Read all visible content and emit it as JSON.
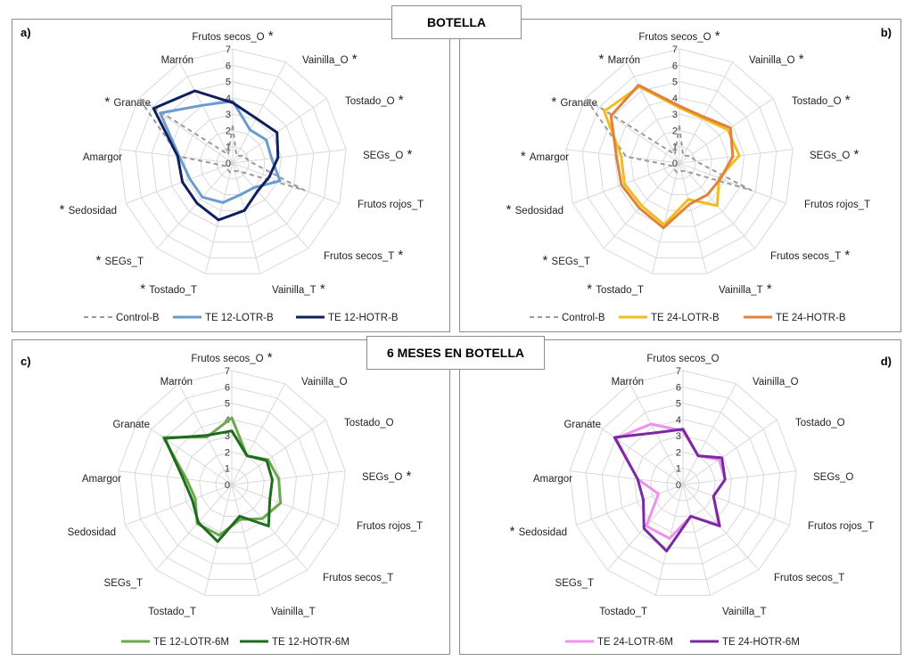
{
  "banners": {
    "top": "BOTELLA",
    "bottom": "6 MESES EN BOTELLA"
  },
  "colors": {
    "Control-B": "#9a9a9a",
    "TE 12-LOTR-B": "#6a9bd1",
    "TE 12-HOTR-B": "#0f1f5c",
    "TE 24-LOTR-B": "#f2bc1f",
    "TE 24-HOTR-B": "#e0823a",
    "TE 12-LOTR-6M": "#6aaa4d",
    "TE 12-HOTR-6M": "#1e6b1e",
    "TE 24-LOTR-6M": "#ee90ee",
    "TE 24-HOTR-6M": "#7a2aa0"
  },
  "chart_data": [
    {
      "type": "radar",
      "panel_label": "a)",
      "categories": [
        "Frutos secos_O",
        "Vainilla_O",
        "Tostado_O",
        "SEGs_O",
        "Frutos rojos_T",
        "Frutos secos_T",
        "Vainilla_T",
        "Tostado_T",
        "SEGs_T",
        "Sedosidad",
        "Amargor",
        "Granate",
        "Marrón"
      ],
      "significant": [
        true,
        true,
        true,
        true,
        false,
        true,
        true,
        true,
        true,
        true,
        false,
        true,
        false
      ],
      "ticks": [
        "0",
        "1",
        "2",
        "3",
        "4",
        "5",
        "6",
        "7"
      ],
      "rmax": 7,
      "series": [
        {
          "name": "Control-B",
          "dashed": true,
          "values": [
            2.3,
            0.5,
            0.8,
            1,
            4.7,
            0.7,
            0.5,
            0.6,
            0.5,
            0.5,
            3.3,
            7,
            0.6
          ]
        },
        {
          "name": "TE 12-LOTR-B",
          "values": [
            3.8,
            2.3,
            2.5,
            2.4,
            3.1,
            2,
            2,
            2.5,
            2.8,
            2.8,
            3.3,
            5.4,
            4
          ]
        },
        {
          "name": "TE 12-HOTR-B",
          "values": [
            3.7,
            3.1,
            3.3,
            2.8,
            2.4,
            2.3,
            3,
            3.6,
            3.3,
            3.3,
            3.4,
            5.9,
            5
          ]
        }
      ]
    },
    {
      "type": "radar",
      "panel_label": "b)",
      "categories": [
        "Frutos secos_O",
        "Vainilla_O",
        "Tostado_O",
        "SEGs_O",
        "Frutos rojos_T",
        "Frutos secos_T",
        "Vainilla_T",
        "Tostado_T",
        "SEGs_T",
        "Sedosidad",
        "Amargor",
        "Granate",
        "Marrón"
      ],
      "significant": [
        true,
        true,
        true,
        true,
        false,
        true,
        true,
        true,
        true,
        true,
        true,
        true,
        true
      ],
      "ticks": [
        "0",
        "1",
        "2",
        "3",
        "4",
        "5",
        "6",
        "7"
      ],
      "rmax": 7,
      "series": [
        {
          "name": "Control-B",
          "dashed": true,
          "values": [
            2.3,
            0.5,
            0.8,
            1,
            4.7,
            0.7,
            0.5,
            0.6,
            0.5,
            0.5,
            3.3,
            7,
            0.6
          ]
        },
        {
          "name": "TE 24-LOTR-B",
          "values": [
            3.4,
            3.1,
            3.6,
            3.7,
            2.6,
            3.5,
            2.3,
            3.9,
            3.5,
            3.6,
            3.6,
            5.6,
            5.3
          ]
        },
        {
          "name": "TE 24-HOTR-B",
          "values": [
            3.5,
            3.2,
            3.8,
            3.3,
            2.7,
            2.6,
            2.6,
            4.1,
            3.7,
            3.8,
            3.9,
            5.1,
            5.4
          ]
        }
      ]
    },
    {
      "type": "radar",
      "panel_label": "c)",
      "categories": [
        "Frutos secos_O",
        "Vainilla_O",
        "Tostado_O",
        "SEGs_O",
        "Frutos rojos_T",
        "Frutos secos_T",
        "Vainilla_T",
        "Tostado_T",
        "SEGs_T",
        "Sedosidad",
        "Amargor",
        "Granate",
        "Marrón"
      ],
      "significant": [
        true,
        false,
        false,
        true,
        false,
        false,
        false,
        false,
        false,
        false,
        false,
        false,
        false
      ],
      "ticks": [
        "0",
        "1",
        "2",
        "3",
        "4",
        "5",
        "6",
        "7"
      ],
      "rmax": 7,
      "series": [
        {
          "name": "TE 12-LOTR-6M",
          "values": [
            4.1,
            2,
            2.7,
            2.9,
            3.2,
            2.8,
            2.2,
            3.2,
            3.2,
            2.4,
            2.8,
            5.1,
            3.3
          ]
        },
        {
          "name": "TE 12-HOTR-6M",
          "values": [
            3.3,
            2,
            2.6,
            2.5,
            2.5,
            3.4,
            2,
            3.6,
            3.1,
            2.6,
            3,
            5,
            3.4
          ]
        }
      ]
    },
    {
      "type": "radar",
      "panel_label": "d)",
      "categories": [
        "Frutos secos_O",
        "Vainilla_O",
        "Tostado_O",
        "SEGs_O",
        "Frutos rojos_T",
        "Frutos secos_T",
        "Vainilla_T",
        "Tostado_T",
        "SEGs_T",
        "Sedosidad",
        "Amargor",
        "Granate",
        "Marrón"
      ],
      "significant": [
        false,
        false,
        false,
        false,
        false,
        false,
        false,
        false,
        false,
        true,
        false,
        false,
        false
      ],
      "ticks": [
        "0",
        "1",
        "2",
        "3",
        "4",
        "5",
        "6",
        "7"
      ],
      "rmax": 7,
      "series": [
        {
          "name": "TE 24-LOTR-6M",
          "values": [
            3.3,
            2,
            2.7,
            2.6,
            2,
            3.3,
            2,
            3.4,
            3.4,
            1.6,
            2.8,
            5,
            4.2
          ]
        },
        {
          "name": "TE 24-HOTR-6M",
          "values": [
            3.4,
            2,
            2.9,
            2.6,
            2,
            3.4,
            2,
            4.2,
            3.6,
            2.6,
            2.8,
            5.1,
            3.6
          ]
        }
      ]
    }
  ]
}
